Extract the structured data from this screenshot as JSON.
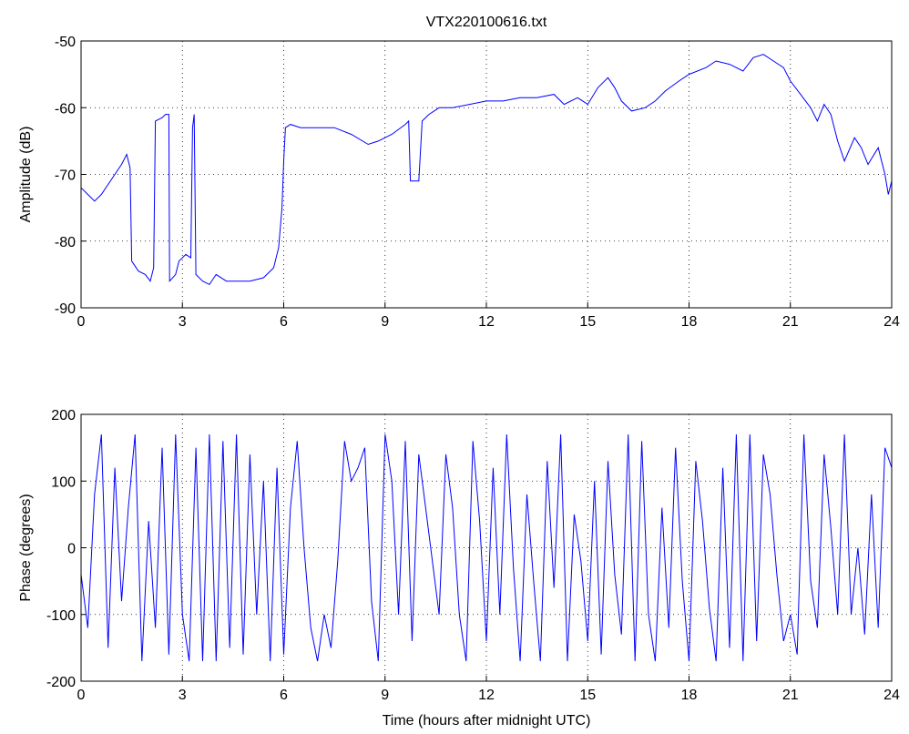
{
  "chart_data": [
    {
      "type": "line",
      "title": "VTX220100616.txt",
      "ylabel": "Amplitude (dB)",
      "color": "#0000ff",
      "grid": true,
      "xlim": [
        0,
        24
      ],
      "xticks": [
        0,
        3,
        6,
        9,
        12,
        15,
        18,
        21,
        24
      ],
      "ylim": [
        -90,
        -50
      ],
      "yticks": [
        -90,
        -80,
        -70,
        -60,
        -50
      ],
      "x": [
        0,
        0.2,
        0.4,
        0.6,
        0.8,
        1.0,
        1.2,
        1.35,
        1.45,
        1.5,
        1.7,
        1.9,
        2.05,
        2.15,
        2.2,
        2.4,
        2.5,
        2.6,
        2.62,
        2.8,
        2.9,
        3.1,
        3.25,
        3.3,
        3.35,
        3.4,
        3.6,
        3.8,
        4.0,
        4.3,
        4.6,
        5.0,
        5.4,
        5.7,
        5.85,
        5.95,
        6.0,
        6.05,
        6.2,
        6.5,
        7.0,
        7.5,
        8.0,
        8.5,
        8.8,
        9.2,
        9.6,
        9.7,
        9.75,
        10.0,
        10.1,
        10.3,
        10.6,
        11.0,
        11.5,
        12.0,
        12.5,
        13.0,
        13.5,
        14.0,
        14.3,
        14.7,
        15.0,
        15.3,
        15.6,
        15.8,
        16.0,
        16.3,
        16.7,
        17.0,
        17.3,
        17.7,
        18.0,
        18.5,
        18.8,
        19.2,
        19.6,
        19.9,
        20.2,
        20.5,
        20.8,
        21.0,
        21.3,
        21.6,
        21.8,
        22.0,
        22.2,
        22.4,
        22.6,
        22.9,
        23.1,
        23.3,
        23.6,
        23.8,
        23.9,
        24
      ],
      "values": [
        -72,
        -73,
        -74,
        -73,
        -71.5,
        -70,
        -68.5,
        -67,
        -69,
        -83,
        -84.5,
        -85,
        -86,
        -84,
        -62,
        -61.5,
        -61,
        -61,
        -86,
        -85,
        -83,
        -82,
        -82.5,
        -63,
        -61,
        -85,
        -86,
        -86.5,
        -85,
        -86,
        -86,
        -86,
        -85.5,
        -84,
        -81,
        -75,
        -68,
        -63,
        -62.5,
        -63,
        -63,
        -63,
        -64,
        -65.5,
        -65,
        -64,
        -62.5,
        -62,
        -71,
        -71,
        -62,
        -61,
        -60,
        -60,
        -59.5,
        -59,
        -59,
        -58.5,
        -58.5,
        -58,
        -59.5,
        -58.5,
        -59.5,
        -57,
        -55.5,
        -57,
        -59,
        -60.5,
        -60,
        -59,
        -57.5,
        -56,
        -55,
        -54,
        -53,
        -53.5,
        -54.5,
        -52.5,
        -52,
        -53,
        -54,
        -56,
        -58,
        -60,
        -62,
        -59.5,
        -61,
        -65,
        -68,
        -64.5,
        -66,
        -68.5,
        -66,
        -70,
        -73,
        -71
      ]
    },
    {
      "type": "line",
      "xlabel": "Time (hours after midnight UTC)",
      "ylabel": "Phase (degrees)",
      "color": "#0000ff",
      "grid": true,
      "xlim": [
        0,
        24
      ],
      "xticks": [
        0,
        3,
        6,
        9,
        12,
        15,
        18,
        21,
        24
      ],
      "ylim": [
        -200,
        200
      ],
      "yticks": [
        -200,
        -100,
        0,
        100,
        200
      ],
      "x": [
        0,
        0.2,
        0.4,
        0.6,
        0.8,
        1.0,
        1.2,
        1.4,
        1.6,
        1.8,
        2.0,
        2.2,
        2.4,
        2.6,
        2.8,
        3.0,
        3.2,
        3.4,
        3.6,
        3.8,
        4.0,
        4.2,
        4.4,
        4.6,
        4.8,
        5.0,
        5.2,
        5.4,
        5.6,
        5.8,
        6.0,
        6.2,
        6.4,
        6.6,
        6.8,
        7.0,
        7.2,
        7.4,
        7.6,
        7.8,
        8.0,
        8.2,
        8.4,
        8.6,
        8.8,
        9.0,
        9.2,
        9.4,
        9.6,
        9.8,
        10.0,
        10.2,
        10.4,
        10.6,
        10.8,
        11.0,
        11.2,
        11.4,
        11.6,
        11.8,
        12.0,
        12.2,
        12.4,
        12.6,
        12.8,
        13.0,
        13.2,
        13.4,
        13.6,
        13.8,
        14.0,
        14.2,
        14.4,
        14.6,
        14.8,
        15.0,
        15.2,
        15.4,
        15.6,
        15.8,
        16.0,
        16.2,
        16.4,
        16.6,
        16.8,
        17.0,
        17.2,
        17.4,
        17.6,
        17.8,
        18.0,
        18.2,
        18.4,
        18.6,
        18.8,
        19.0,
        19.2,
        19.4,
        19.6,
        19.8,
        20.0,
        20.2,
        20.4,
        20.6,
        20.8,
        21.0,
        21.2,
        21.4,
        21.6,
        21.8,
        22.0,
        22.2,
        22.4,
        22.6,
        22.8,
        23.0,
        23.2,
        23.4,
        23.6,
        23.8,
        24.0
      ],
      "values": [
        -40,
        -120,
        80,
        170,
        -150,
        120,
        -80,
        60,
        170,
        -170,
        40,
        -120,
        150,
        -160,
        170,
        -100,
        -170,
        150,
        -170,
        170,
        -170,
        160,
        -150,
        170,
        -160,
        140,
        -100,
        100,
        -170,
        120,
        -160,
        60,
        160,
        0,
        -120,
        -170,
        -100,
        -150,
        -20,
        160,
        100,
        120,
        150,
        -80,
        -170,
        170,
        100,
        -100,
        160,
        -140,
        140,
        60,
        -20,
        -100,
        140,
        60,
        -100,
        -170,
        160,
        40,
        -140,
        120,
        -100,
        170,
        -30,
        -170,
        80,
        -50,
        -170,
        130,
        -60,
        170,
        -170,
        50,
        -20,
        -140,
        100,
        -160,
        130,
        -40,
        -130,
        170,
        -170,
        160,
        -100,
        -170,
        60,
        -120,
        150,
        -50,
        -170,
        130,
        40,
        -90,
        -170,
        120,
        -150,
        170,
        -170,
        170,
        -140,
        140,
        80,
        -40,
        -140,
        -100,
        -160,
        170,
        -50,
        -120,
        140,
        30,
        -100,
        170,
        -100,
        0,
        -130,
        80,
        -120,
        150,
        120
      ]
    }
  ]
}
